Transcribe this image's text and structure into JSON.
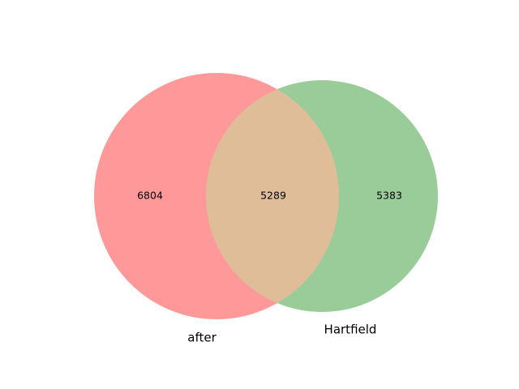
{
  "venn": {
    "sets": [
      {
        "name": "after",
        "only_count": "6804",
        "color": "#ff9999"
      },
      {
        "name": "Hartfield",
        "only_count": "5383",
        "color": "#99cc99"
      }
    ],
    "intersection": {
      "count": "5289",
      "color": "#e0bd99"
    }
  }
}
